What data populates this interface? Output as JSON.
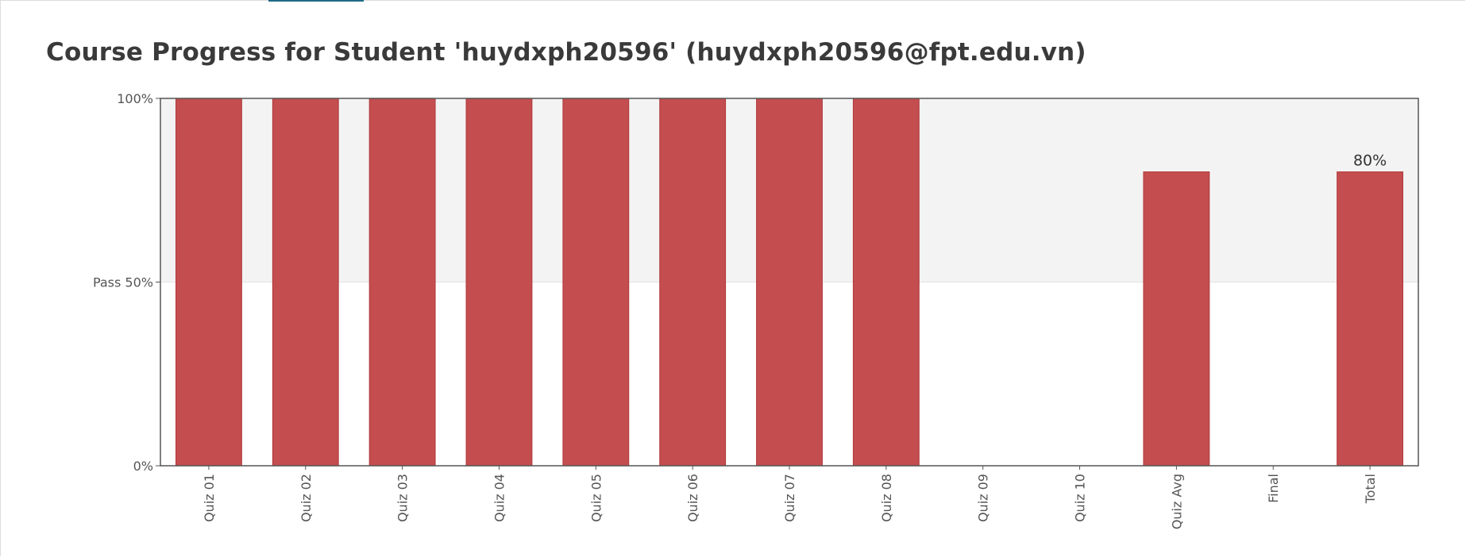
{
  "page": {
    "title": "Course Progress for Student 'huydxph20596' (huydxph20596@fpt.edu.vn)"
  },
  "chart_data": {
    "type": "bar",
    "categories": [
      "Quiz 01",
      "Quiz 02",
      "Quiz 03",
      "Quiz 04",
      "Quiz 05",
      "Quiz 06",
      "Quiz 07",
      "Quiz 08",
      "Quiz 09",
      "Quiz 10",
      "Quiz Avg",
      "Final",
      "Total"
    ],
    "values": [
      100,
      100,
      100,
      100,
      100,
      100,
      100,
      100,
      0,
      0,
      80,
      0,
      80
    ],
    "ylim": [
      0,
      100
    ],
    "y_ticks": [
      {
        "value": 0,
        "label": "0%"
      },
      {
        "value": 50,
        "label": "Pass 50%"
      },
      {
        "value": 100,
        "label": "100%"
      }
    ],
    "pass_threshold": 50,
    "data_labels": [
      {
        "category": "Total",
        "label": "80%"
      }
    ],
    "xlabel": "",
    "ylabel": "",
    "grid": false,
    "colors": {
      "bar": "#c44d4f",
      "bar_edge": "#b0393b",
      "pass_band": "#f3f3f3",
      "axis": "#555555"
    }
  }
}
